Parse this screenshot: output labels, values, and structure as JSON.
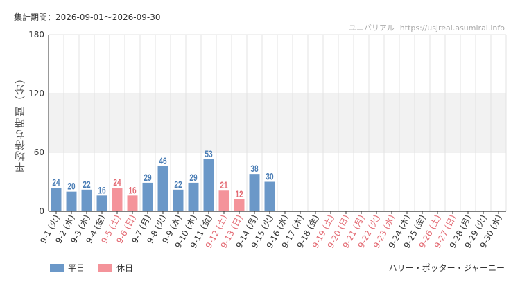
{
  "header": {
    "period_label": "集計期間：",
    "period_value": "2026-09-01～2026-09-30"
  },
  "watermark": {
    "site_name": "ユニバリアル",
    "url": "https://usjreal.asumirai.info"
  },
  "legend": {
    "weekday_label": "平日",
    "holiday_label": "休日"
  },
  "attraction": "ハリー・ポッター・ジャーニー",
  "colors": {
    "weekday": "#6b98c8",
    "holiday": "#f4939a",
    "weekday_text": "#4a7db5",
    "holiday_text": "#e36a73",
    "band": "#f2f2f2",
    "grid": "#e3e3e3",
    "axis": "#333333"
  },
  "chart_data": {
    "type": "bar",
    "title": "",
    "xlabel": "",
    "ylabel": "平均待ち時間（分）",
    "ylim": [
      0,
      180
    ],
    "yticks": [
      0,
      60,
      120,
      180
    ],
    "band": [
      60,
      120
    ],
    "grid": true,
    "legend_position": "bottom-left",
    "categories": [
      "9-1 (火)",
      "9-2 (水)",
      "9-3 (木)",
      "9-4 (金)",
      "9-5 (土)",
      "9-6 (日)",
      "9-7 (月)",
      "9-8 (火)",
      "9-9 (水)",
      "9-10 (木)",
      "9-11 (金)",
      "9-12 (土)",
      "9-13 (日)",
      "9-14 (月)",
      "9-15 (火)",
      "9-16 (水)",
      "9-17 (木)",
      "9-18 (金)",
      "9-19 (土)",
      "9-20 (日)",
      "9-21 (月)",
      "9-22 (火)",
      "9-23 (水)",
      "9-24 (木)",
      "9-25 (金)",
      "9-26 (土)",
      "9-27 (日)",
      "9-28 (月)",
      "9-29 (火)",
      "9-30 (水)"
    ],
    "holiday": [
      false,
      false,
      false,
      false,
      true,
      true,
      false,
      false,
      false,
      false,
      false,
      true,
      true,
      false,
      false,
      false,
      false,
      false,
      true,
      true,
      true,
      true,
      true,
      false,
      false,
      true,
      true,
      false,
      false,
      false
    ],
    "values": [
      24,
      20,
      22,
      16,
      24,
      16,
      29,
      46,
      22,
      29,
      53,
      21,
      12,
      38,
      30,
      null,
      null,
      null,
      null,
      null,
      null,
      null,
      null,
      null,
      null,
      null,
      null,
      null,
      null,
      null
    ]
  }
}
